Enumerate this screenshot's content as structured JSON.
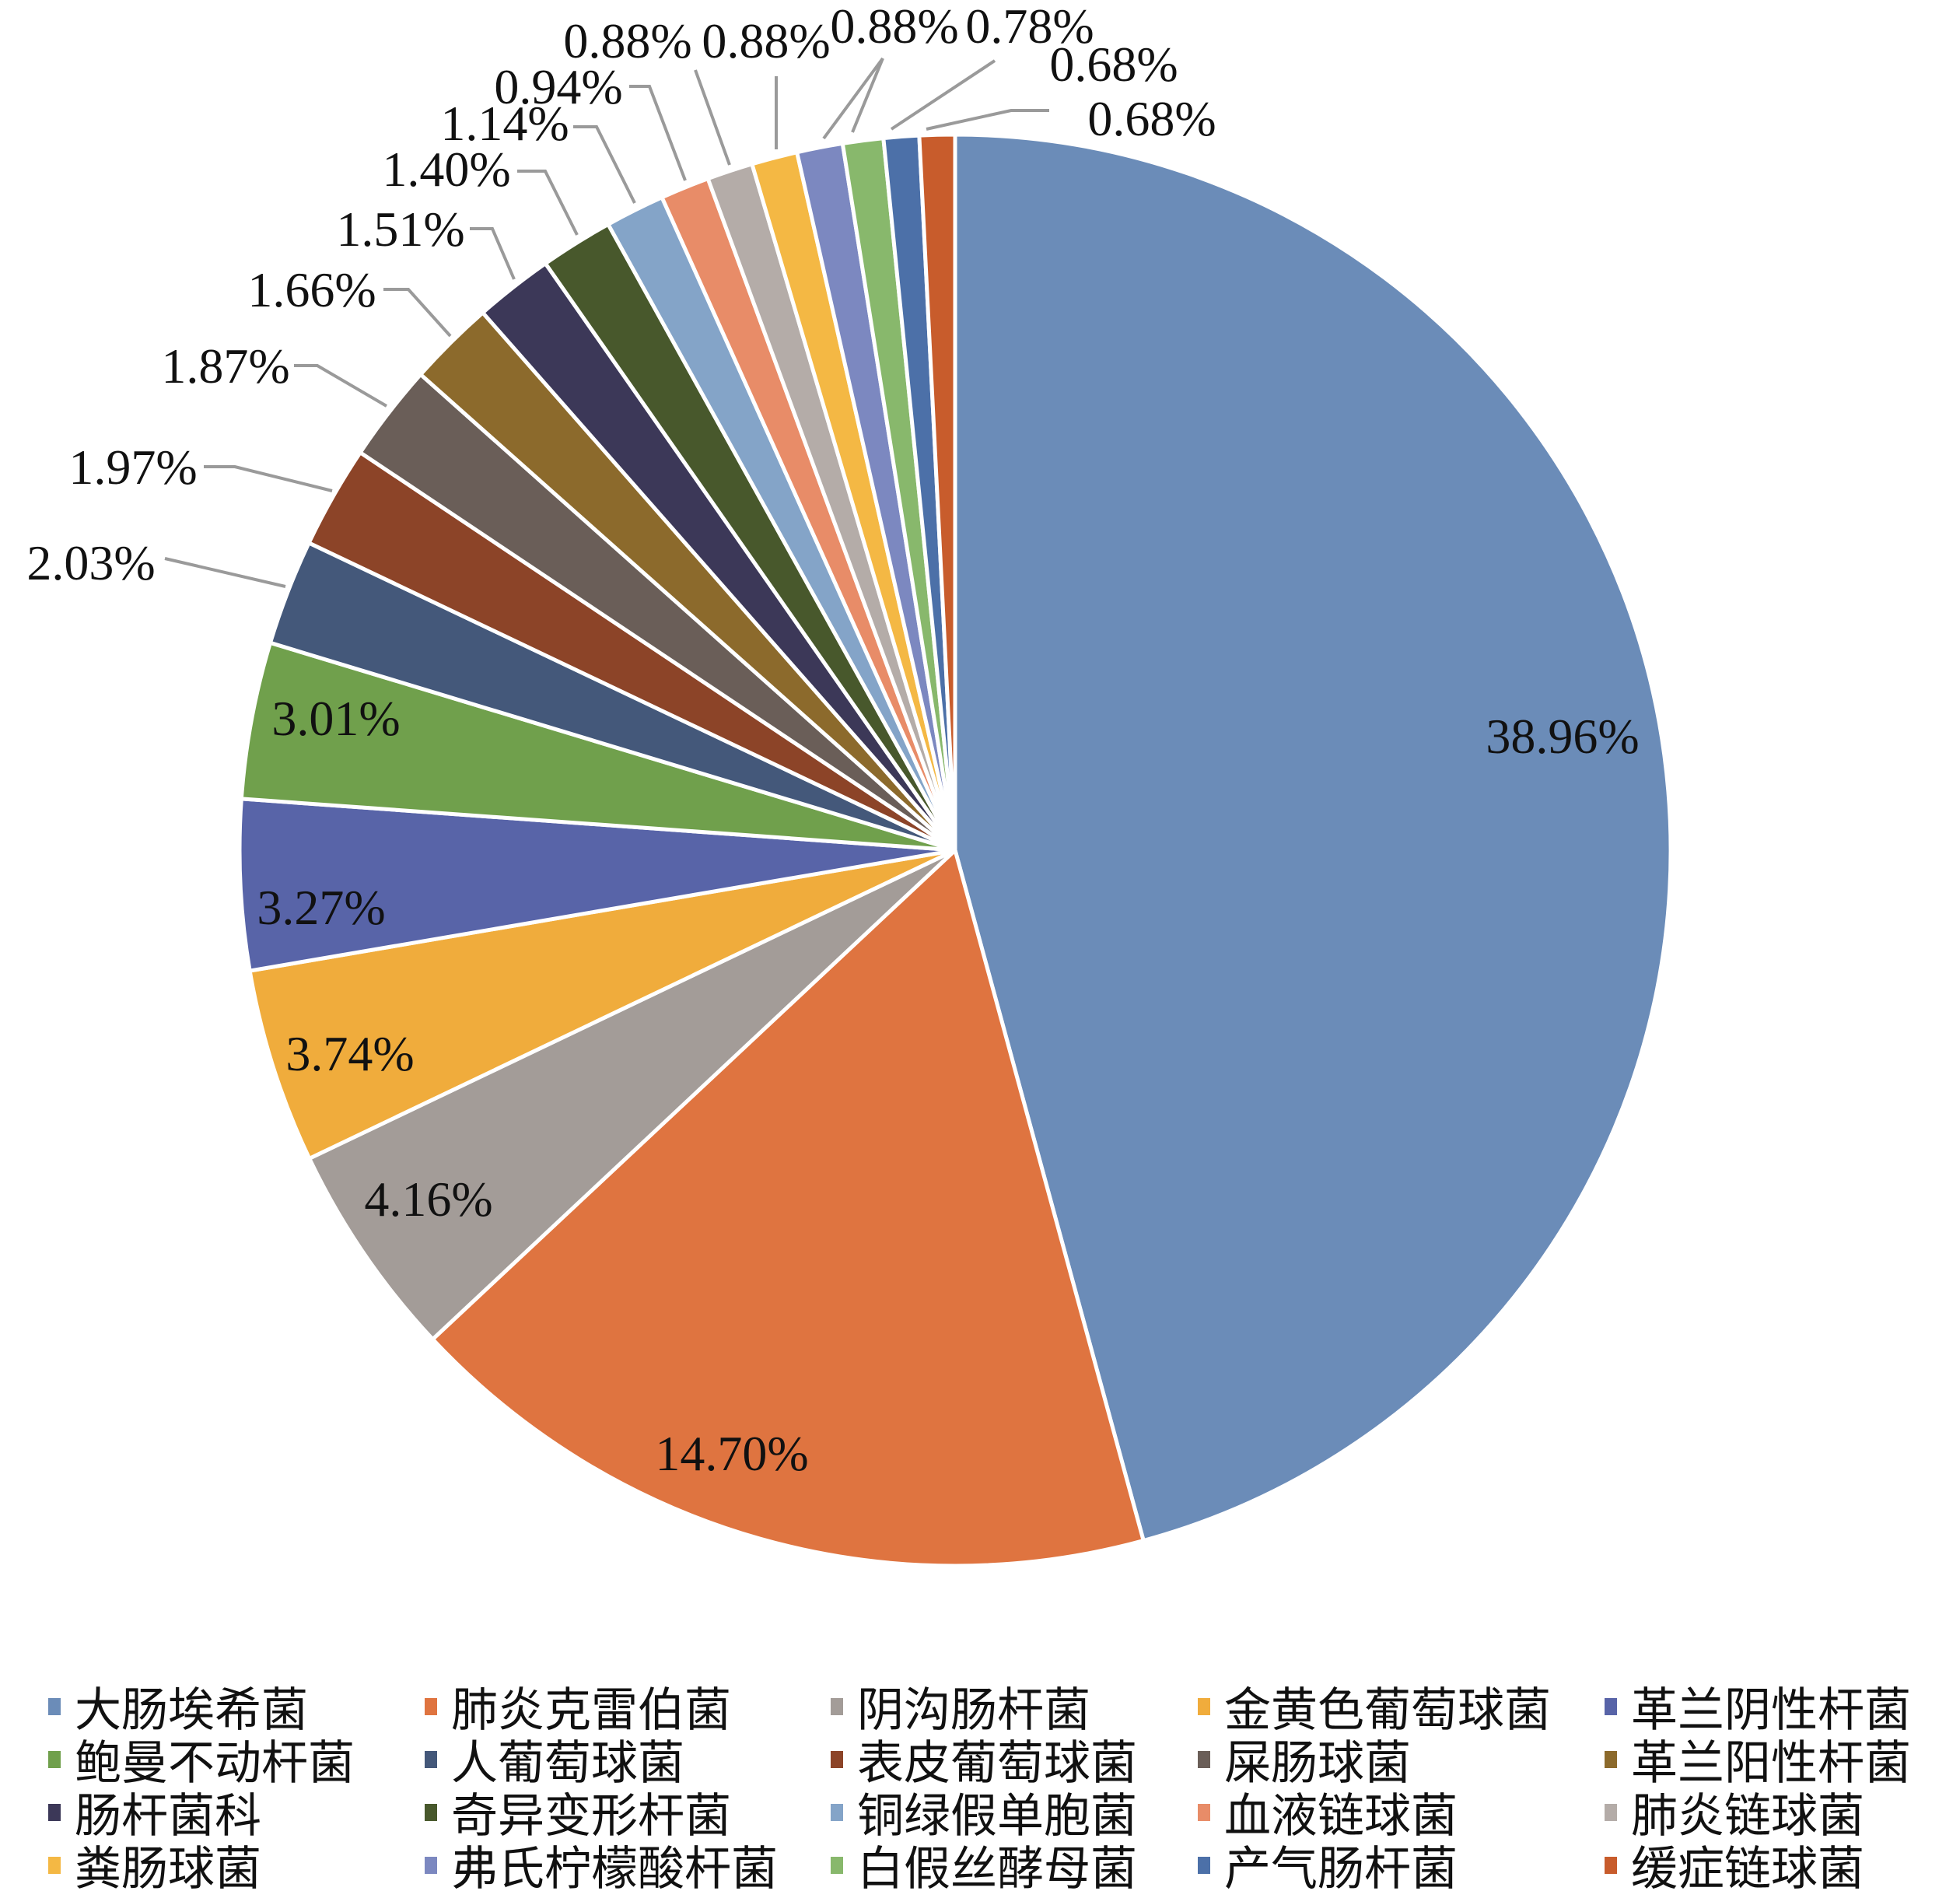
{
  "chart_data": {
    "type": "pie",
    "title": "",
    "start": "12 o'clock, clockwise",
    "categories": [
      "大肠埃希菌",
      "肺炎克雷伯菌",
      "阴沟肠杆菌",
      "金黄色葡萄球菌",
      "革兰阴性杆菌",
      "鲍曼不动杆菌",
      "人葡萄球菌",
      "表皮葡萄球菌",
      "屎肠球菌",
      "革兰阳性杆菌",
      "肠杆菌科",
      "奇异变形杆菌",
      "铜绿假单胞菌",
      "血液链球菌",
      "肺炎链球菌",
      "粪肠球菌",
      "弗氏柠檬酸杆菌",
      "白假丝酵母菌",
      "产气肠杆菌",
      "缓症链球菌"
    ],
    "values": [
      38.96,
      14.7,
      4.16,
      3.74,
      3.27,
      3.01,
      2.03,
      1.97,
      1.87,
      1.66,
      1.51,
      1.4,
      1.14,
      0.94,
      0.88,
      0.88,
      0.88,
      0.78,
      0.68,
      0.68
    ],
    "labels": [
      "38.96%",
      "14.70%",
      "4.16%",
      "3.74%",
      "3.27%",
      "3.01%",
      "2.03%",
      "1.97%",
      "1.87%",
      "1.66%",
      "1.51%",
      "1.40%",
      "1.14%",
      "0.94%",
      "0.88%",
      "0.88%",
      "0.88%",
      "0.78%",
      "0.68%",
      "0.68%"
    ],
    "colors": [
      "#6b8cb8",
      "#df7440",
      "#a39c98",
      "#f0ac3c",
      "#5864a8",
      "#70a04c",
      "#44587a",
      "#8c4428",
      "#6a5e58",
      "#8c6a2c",
      "#3c3858",
      "#48582c",
      "#84a4c8",
      "#e88c68",
      "#b4aca8",
      "#f4b844",
      "#7c88c0",
      "#88b86c",
      "#4c70a8",
      "#c85c2c"
    ],
    "legend_position": "bottom"
  }
}
